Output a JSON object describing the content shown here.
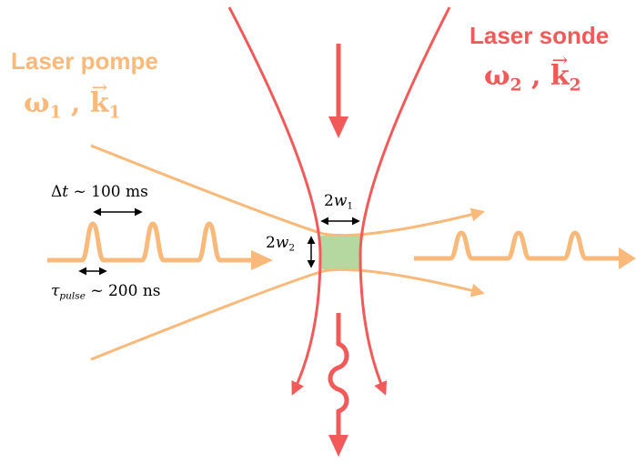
{
  "pump": {
    "label": "Laser pompe",
    "omega": "ω",
    "omega_sub": "1",
    "sep": " , ",
    "k": "k",
    "k_sub": "1",
    "color": "#f9b97a"
  },
  "probe": {
    "label": "Laser sonde",
    "omega": "ω",
    "omega_sub": "2",
    "sep": " , ",
    "k": "k",
    "k_sub": "2",
    "color": "#f25a5a"
  },
  "annotations": {
    "delta_t_sym": "Δ",
    "delta_t_var": "t",
    "delta_t_val": " ~ 100 ms",
    "tau_sym": "τ",
    "tau_sub": "pulse",
    "tau_val": " ~ 200 ns",
    "w1_pre": "2",
    "w1_var": "w",
    "w1_sub": "1",
    "w2_pre": "2",
    "w2_var": "w",
    "w2_sub": "2"
  },
  "overlap_color": "#b5d7a0"
}
